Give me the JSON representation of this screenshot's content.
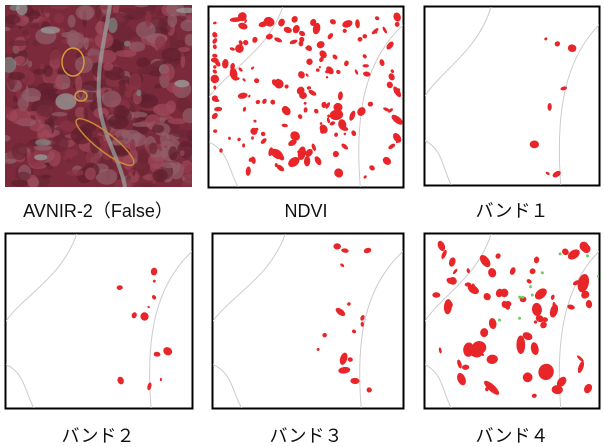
{
  "panels": [
    {
      "caption": "AVNIR-2（False）"
    },
    {
      "caption": "NDVI"
    },
    {
      "caption": "バンド１"
    },
    {
      "caption": "バンド２"
    },
    {
      "caption": "バンド３"
    },
    {
      "caption": "バンド４"
    }
  ]
}
